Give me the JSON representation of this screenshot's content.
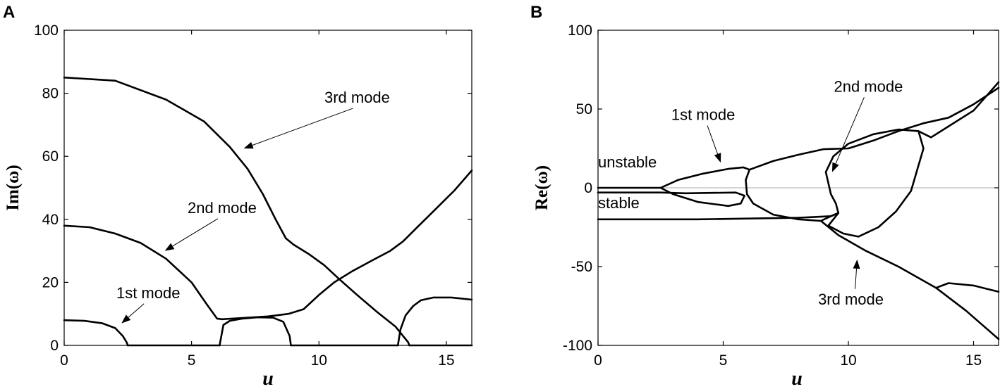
{
  "chart_data": [
    {
      "panel": "A",
      "type": "line",
      "xlabel": "u",
      "ylabel": "Im(ω)",
      "xlim": [
        0,
        16
      ],
      "ylim": [
        0,
        100
      ],
      "xticks": [
        0,
        5,
        10,
        15
      ],
      "yticks": [
        0,
        20,
        40,
        60,
        80,
        100
      ],
      "grid": false,
      "curves": [
        {
          "points": [
            [
              0,
              8
            ],
            [
              0.8,
              7.8
            ],
            [
              1.5,
              7
            ],
            [
              2,
              5.5
            ],
            [
              2.3,
              3
            ],
            [
              2.45,
              1
            ],
            [
              2.5,
              0
            ]
          ]
        },
        {
          "points": [
            [
              2.5,
              0
            ],
            [
              6.1,
              0
            ]
          ]
        },
        {
          "points": [
            [
              0,
              38
            ],
            [
              1,
              37.5
            ],
            [
              2,
              35.5
            ],
            [
              3,
              32.5
            ],
            [
              4,
              27.5
            ],
            [
              5,
              20
            ],
            [
              5.6,
              13
            ],
            [
              6,
              8.5
            ],
            [
              6.2,
              8.3
            ]
          ]
        },
        {
          "points": [
            [
              6.2,
              8.3
            ],
            [
              7,
              8.7
            ],
            [
              8,
              9.2
            ],
            [
              8.8,
              10
            ],
            [
              9.4,
              11.5
            ],
            [
              10,
              16
            ],
            [
              10.6,
              20
            ],
            [
              11.3,
              23.5
            ],
            [
              12.1,
              27
            ],
            [
              12.8,
              30
            ],
            [
              13.3,
              33
            ],
            [
              13.8,
              37
            ],
            [
              14.3,
              41
            ],
            [
              14.8,
              45
            ],
            [
              15.3,
              49
            ],
            [
              16,
              55.5
            ]
          ]
        },
        {
          "points": [
            [
              0,
              85
            ],
            [
              2,
              84
            ],
            [
              4,
              78
            ],
            [
              5.5,
              71
            ],
            [
              6.5,
              63
            ],
            [
              7.2,
              56
            ],
            [
              7.8,
              48
            ],
            [
              8.3,
              40
            ],
            [
              8.7,
              34
            ],
            [
              9,
              32
            ],
            [
              9.6,
              29
            ],
            [
              10.2,
              25.5
            ],
            [
              10.8,
              21
            ],
            [
              11.5,
              16
            ],
            [
              12.3,
              10.5
            ],
            [
              13,
              6
            ],
            [
              13.3,
              3
            ],
            [
              13.5,
              1
            ],
            [
              13.55,
              0
            ]
          ]
        },
        {
          "points": [
            [
              6.1,
              0
            ],
            [
              6.25,
              6.5
            ],
            [
              6.5,
              7.8
            ],
            [
              7,
              8.5
            ],
            [
              7.6,
              8.9
            ],
            [
              8.2,
              8.8
            ],
            [
              8.6,
              7.5
            ],
            [
              8.85,
              3
            ],
            [
              8.9,
              0
            ]
          ]
        },
        {
          "points": [
            [
              8.9,
              0
            ],
            [
              13.1,
              0
            ]
          ]
        },
        {
          "points": [
            [
              13.1,
              0
            ],
            [
              13.2,
              5
            ],
            [
              13.4,
              9.5
            ],
            [
              13.7,
              12.5
            ],
            [
              14,
              14.3
            ],
            [
              14.5,
              15.2
            ],
            [
              15.2,
              15.2
            ],
            [
              16,
              14.5
            ]
          ]
        },
        {
          "points": [
            [
              13.55,
              0
            ],
            [
              16,
              0
            ]
          ]
        }
      ],
      "annotations": [
        {
          "text": "3rd mode",
          "x": 11.5,
          "y": 77,
          "arrow_to": [
            7.05,
            62.5
          ]
        },
        {
          "text": "2nd mode",
          "x": 6.2,
          "y": 42,
          "arrow_to": [
            3.95,
            30
          ]
        },
        {
          "text": "1st mode",
          "x": 3.3,
          "y": 15,
          "arrow_to": [
            2.25,
            7
          ]
        }
      ]
    },
    {
      "panel": "B",
      "type": "line",
      "xlabel": "u",
      "ylabel": "Re(ω)",
      "xlim": [
        0,
        16
      ],
      "ylim": [
        -100,
        100
      ],
      "xticks": [
        0,
        5,
        10,
        15
      ],
      "yticks": [
        -100,
        -50,
        0,
        50,
        100
      ],
      "grid": false,
      "zero_line": true,
      "curves": [
        {
          "points": [
            [
              0,
              0
            ],
            [
              2.5,
              0
            ],
            [
              3.2,
              5
            ],
            [
              4.2,
              9
            ],
            [
              5.2,
              12
            ],
            [
              5.8,
              13
            ],
            [
              6.05,
              11.5
            ]
          ]
        },
        {
          "points": [
            [
              0,
              -3
            ],
            [
              2.5,
              -3
            ],
            [
              3.5,
              -3.5
            ],
            [
              5.5,
              -3
            ],
            [
              5.85,
              -5
            ],
            [
              5.7,
              -10
            ],
            [
              5.2,
              -11.5
            ],
            [
              4,
              -9
            ],
            [
              3,
              -4
            ],
            [
              2.5,
              0
            ]
          ]
        },
        {
          "points": [
            [
              6.05,
              11.5
            ],
            [
              5.9,
              5
            ],
            [
              5.95,
              -4
            ],
            [
              6.2,
              -10
            ],
            [
              7,
              -17
            ],
            [
              8,
              -20
            ],
            [
              8.9,
              -21
            ],
            [
              9.3,
              -18
            ],
            [
              9.6,
              -16
            ]
          ]
        },
        {
          "points": [
            [
              6.05,
              11.5
            ],
            [
              7,
              17
            ],
            [
              8,
              21
            ],
            [
              9,
              24.5
            ],
            [
              10,
              25
            ],
            [
              11,
              30
            ],
            [
              12,
              36
            ],
            [
              13,
              41
            ],
            [
              14,
              44.5
            ],
            [
              15,
              53
            ],
            [
              16,
              63.5
            ]
          ]
        },
        {
          "points": [
            [
              0,
              -20
            ],
            [
              4,
              -20
            ],
            [
              6,
              -19.5
            ],
            [
              8,
              -19
            ],
            [
              9.3,
              -18
            ],
            [
              9.6,
              -16
            ],
            [
              9.5,
              -10
            ],
            [
              9.3,
              -4
            ],
            [
              9.1,
              10
            ],
            [
              9.4,
              20
            ],
            [
              10,
              28
            ],
            [
              11,
              34
            ],
            [
              12,
              37
            ],
            [
              12.8,
              36
            ],
            [
              13,
              25
            ],
            [
              12.5,
              -2
            ],
            [
              11.9,
              -15
            ],
            [
              11.2,
              -25
            ],
            [
              10.4,
              -31
            ],
            [
              9.8,
              -29
            ],
            [
              9.2,
              -24
            ],
            [
              9.6,
              -16
            ]
          ]
        },
        {
          "points": [
            [
              8.9,
              -21
            ],
            [
              9.6,
              -30
            ],
            [
              10.7,
              -40
            ],
            [
              12,
              -50
            ],
            [
              13.5,
              -63.5
            ],
            [
              14.7,
              -78
            ],
            [
              16,
              -96
            ]
          ]
        },
        {
          "points": [
            [
              13.5,
              -63.5
            ],
            [
              14,
              -60.5
            ],
            [
              15,
              -62
            ],
            [
              16,
              -66
            ]
          ]
        },
        {
          "points": [
            [
              12.8,
              36
            ],
            [
              13.3,
              32
            ],
            [
              14,
              39
            ],
            [
              15,
              49
            ],
            [
              16,
              67
            ]
          ]
        }
      ],
      "annotations": [
        {
          "text": "unstable",
          "x": 0,
          "y": 13,
          "arrow_to": null
        },
        {
          "text": "stable",
          "x": 0,
          "y": -13,
          "arrow_to": null
        },
        {
          "text": "1st mode",
          "x": 4.2,
          "y": 43,
          "arrow_to": [
            4.9,
            16
          ]
        },
        {
          "text": "2nd mode",
          "x": 10.8,
          "y": 61,
          "arrow_to": [
            9.35,
            10
          ]
        },
        {
          "text": "3rd mode",
          "x": 10.1,
          "y": -74,
          "arrow_to": [
            10.35,
            -45.5
          ]
        }
      ]
    }
  ]
}
